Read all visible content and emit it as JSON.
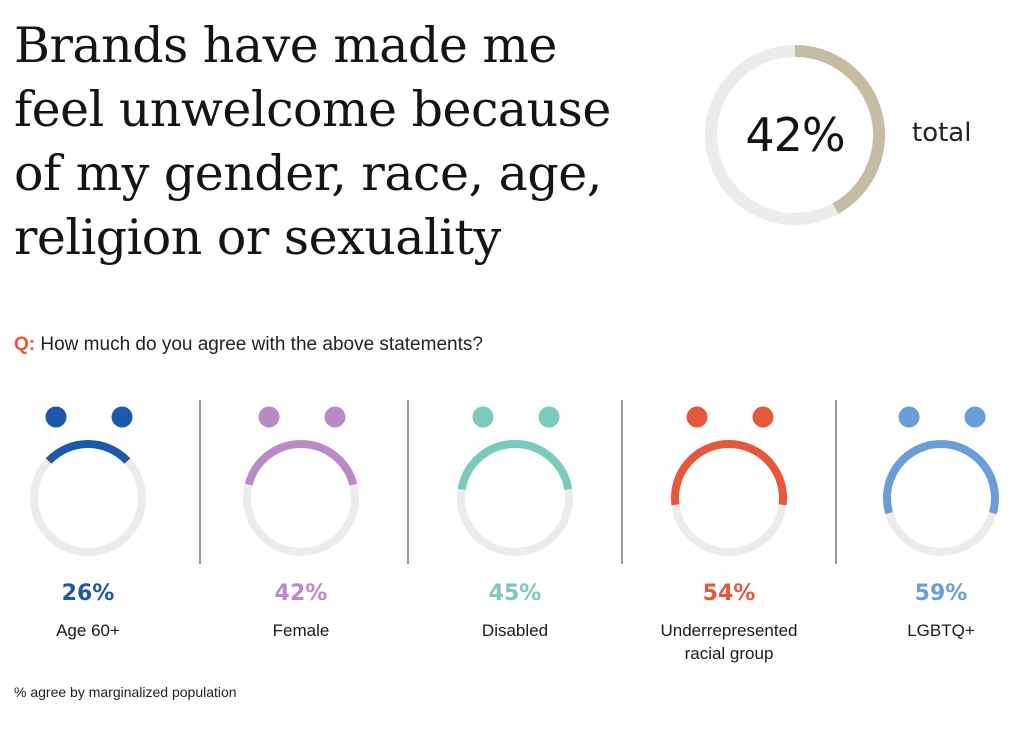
{
  "headline": "Brands have made me feel unwelcome because of my gender, race, age, religion or sexuality",
  "total": {
    "value_label": "42%",
    "value": 42,
    "label": "total",
    "color": "#c4bca3",
    "track_color": "#ececec"
  },
  "question": {
    "prefix": "Q:",
    "text": "How much do you agree with the above statements?"
  },
  "footnote": "% agree by marginalized population",
  "chart_data": {
    "type": "donut",
    "title": "Brands have made me feel unwelcome because of my gender, race, age, religion or sexuality",
    "ylabel": "% agree",
    "categories": [
      "Age 60+",
      "Female",
      "Disabled",
      "Underrepresented racial group",
      "LGBTQ+"
    ],
    "values": [
      26,
      42,
      45,
      54,
      59
    ],
    "value_labels": [
      "26%",
      "42%",
      "45%",
      "54%",
      "59%"
    ],
    "colors": [
      "#1d57a8",
      "#b98bc6",
      "#7cc9bd",
      "#e5583b",
      "#6a9ed8"
    ],
    "track_color": "#ececec",
    "total": 42
  },
  "groups": [
    {
      "pct": "26%",
      "label": "Age 60+",
      "color": "#1d57a8",
      "value": 26
    },
    {
      "pct": "42%",
      "label": "Female",
      "color": "#b98bc6",
      "value": 42
    },
    {
      "pct": "45%",
      "label": "Disabled",
      "color": "#7cc9bd",
      "value": 45
    },
    {
      "pct": "54%",
      "label": "Underrepresented racial group",
      "color": "#e5583b",
      "value": 54
    },
    {
      "pct": "59%",
      "label": "LGBTQ+",
      "color": "#6a9ed8",
      "value": 59
    }
  ]
}
